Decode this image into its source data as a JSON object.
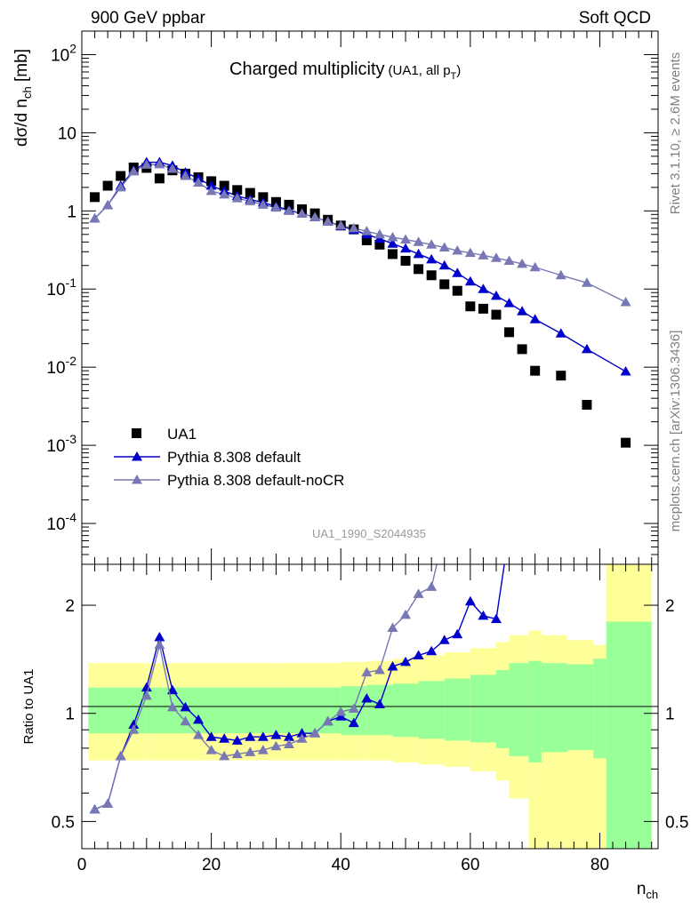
{
  "header": {
    "energy_label": "900 GeV ppbar",
    "process_label": "Soft QCD"
  },
  "side_labels": {
    "rivet": "Rivet 3.1.10, ≥ 2.6M events",
    "mcplots": "mcplots.cern.ch [arXiv:1306.3436]"
  },
  "chart_data": {
    "type": "scatter",
    "title": "Charged multiplicity",
    "subtitle": "(UA1, all p_T)",
    "analysis_id": "UA1_1990_S2044935",
    "main": {
      "ylabel": "dσ/d n_ch [mb]",
      "yscale": "log",
      "ylim": [
        3e-05,
        200
      ],
      "xlim": [
        0,
        89
      ],
      "ytick_labels": [
        "10^-4",
        "10^-3",
        "10^-2",
        "10^-1",
        "1",
        "10",
        "10^2"
      ],
      "legend_position": "bottom-left",
      "series": [
        {
          "name": "UA1",
          "style": "marker-square",
          "color": "#000000",
          "x": [
            2,
            4,
            6,
            8,
            10,
            12,
            14,
            16,
            18,
            20,
            22,
            24,
            26,
            28,
            30,
            32,
            34,
            36,
            38,
            40,
            42,
            44,
            46,
            48,
            50,
            52,
            54,
            56,
            58,
            60,
            62,
            64,
            66,
            68,
            70,
            74,
            78,
            84
          ],
          "y": [
            1.5,
            2.1,
            2.8,
            3.6,
            3.55,
            2.6,
            3.3,
            3.0,
            2.7,
            2.4,
            2.1,
            1.85,
            1.7,
            1.5,
            1.3,
            1.2,
            1.05,
            0.93,
            0.77,
            0.65,
            0.58,
            0.42,
            0.37,
            0.28,
            0.23,
            0.18,
            0.15,
            0.115,
            0.095,
            0.06,
            0.056,
            0.047,
            0.028,
            0.017,
            0.009,
            0.0078,
            0.0033,
            0.00108
          ]
        },
        {
          "name": "Pythia 8.308 default",
          "style": "line-triangle",
          "color": "#0000cc",
          "x": [
            2,
            4,
            6,
            8,
            10,
            12,
            14,
            16,
            18,
            20,
            22,
            24,
            26,
            28,
            30,
            32,
            34,
            36,
            38,
            40,
            42,
            44,
            46,
            48,
            50,
            52,
            54,
            56,
            58,
            60,
            62,
            64,
            66,
            68,
            70,
            74,
            78,
            84
          ],
          "y": [
            0.8,
            1.18,
            2.1,
            3.3,
            4.2,
            4.2,
            3.8,
            3.1,
            2.6,
            2.1,
            1.8,
            1.55,
            1.4,
            1.28,
            1.14,
            1.03,
            0.92,
            0.83,
            0.73,
            0.64,
            0.57,
            0.5,
            0.44,
            0.38,
            0.33,
            0.28,
            0.24,
            0.2,
            0.16,
            0.125,
            0.1,
            0.082,
            0.066,
            0.052,
            0.041,
            0.027,
            0.017,
            0.0088
          ]
        },
        {
          "name": "Pythia 8.308 default-noCR",
          "style": "line-triangle",
          "color": "#7878b4",
          "x": [
            2,
            4,
            6,
            8,
            10,
            12,
            14,
            16,
            18,
            20,
            22,
            24,
            26,
            28,
            30,
            32,
            34,
            36,
            38,
            40,
            42,
            44,
            46,
            48,
            50,
            52,
            54,
            56,
            58,
            60,
            62,
            64,
            66,
            68,
            70,
            74,
            78,
            84
          ],
          "y": [
            0.8,
            1.18,
            2.0,
            3.2,
            3.9,
            3.95,
            3.45,
            2.8,
            2.3,
            1.8,
            1.62,
            1.45,
            1.33,
            1.2,
            1.1,
            1.0,
            0.92,
            0.83,
            0.73,
            0.65,
            0.6,
            0.55,
            0.5,
            0.46,
            0.43,
            0.4,
            0.37,
            0.34,
            0.31,
            0.29,
            0.27,
            0.25,
            0.23,
            0.21,
            0.19,
            0.15,
            0.12,
            0.068
          ]
        }
      ]
    },
    "ratio": {
      "ylabel": "Ratio to UA1",
      "yscale": "log",
      "ylim": [
        0.42,
        2.6
      ],
      "ytick_labels": [
        "0.5",
        "1",
        "2"
      ],
      "xlabel": "n_ch",
      "xtick_labels": [
        "0",
        "20",
        "40",
        "60",
        "80"
      ],
      "reference_line": 1,
      "uncertainty_bands": {
        "colors": {
          "inner": "#99ff99",
          "outer": "#ffff99"
        },
        "x_edges": [
          1,
          10,
          20,
          30,
          40,
          44,
          48,
          52,
          56,
          60,
          64,
          66,
          69,
          71,
          75,
          79,
          81,
          88
        ],
        "outer_low": [
          0.74,
          0.74,
          0.74,
          0.74,
          0.74,
          0.74,
          0.73,
          0.72,
          0.71,
          0.69,
          0.65,
          0.58,
          0.42,
          0.42,
          0.42,
          0.42,
          0.42
        ],
        "outer_high": [
          1.38,
          1.38,
          1.38,
          1.38,
          1.39,
          1.4,
          1.42,
          1.45,
          1.48,
          1.52,
          1.58,
          1.65,
          1.7,
          1.65,
          1.6,
          1.55,
          2.6
        ],
        "inner_low": [
          0.88,
          0.88,
          0.88,
          0.88,
          0.87,
          0.87,
          0.86,
          0.85,
          0.84,
          0.83,
          0.8,
          0.76,
          0.73,
          0.78,
          0.79,
          0.75,
          0.42
        ],
        "inner_high": [
          1.18,
          1.18,
          1.18,
          1.18,
          1.19,
          1.2,
          1.21,
          1.23,
          1.25,
          1.28,
          1.32,
          1.38,
          1.4,
          1.38,
          1.37,
          1.42,
          1.8
        ]
      },
      "series": [
        {
          "name": "Pythia 8.308 default",
          "color": "#0000cc",
          "x": [
            2,
            4,
            6,
            8,
            10,
            12,
            14,
            16,
            18,
            20,
            22,
            24,
            26,
            28,
            30,
            32,
            34,
            36,
            38,
            40,
            42,
            44,
            46,
            48,
            50,
            52,
            54,
            56,
            58,
            60,
            62,
            64,
            66
          ],
          "y": [
            0.54,
            0.56,
            0.76,
            0.93,
            1.18,
            1.63,
            1.16,
            1.04,
            0.96,
            0.86,
            0.85,
            0.84,
            0.86,
            0.86,
            0.87,
            0.86,
            0.88,
            0.88,
            0.95,
            0.98,
            0.94,
            1.1,
            1.06,
            1.35,
            1.39,
            1.45,
            1.49,
            1.6,
            1.66,
            2.05,
            1.87,
            1.83,
            3.2
          ]
        },
        {
          "name": "Pythia 8.308 default-noCR",
          "color": "#7878b4",
          "x": [
            2,
            4,
            6,
            8,
            10,
            12,
            14,
            16,
            18,
            20,
            22,
            24,
            26,
            28,
            30,
            32,
            34,
            36,
            38,
            40,
            42,
            44,
            46,
            48,
            50,
            52,
            54,
            56
          ],
          "y": [
            0.54,
            0.56,
            0.76,
            0.9,
            1.12,
            1.55,
            1.04,
            0.95,
            0.87,
            0.79,
            0.76,
            0.77,
            0.78,
            0.79,
            0.81,
            0.82,
            0.85,
            0.88,
            0.95,
            1.01,
            1.03,
            1.3,
            1.32,
            1.73,
            1.88,
            2.15,
            2.25,
            3.2
          ]
        }
      ]
    }
  }
}
